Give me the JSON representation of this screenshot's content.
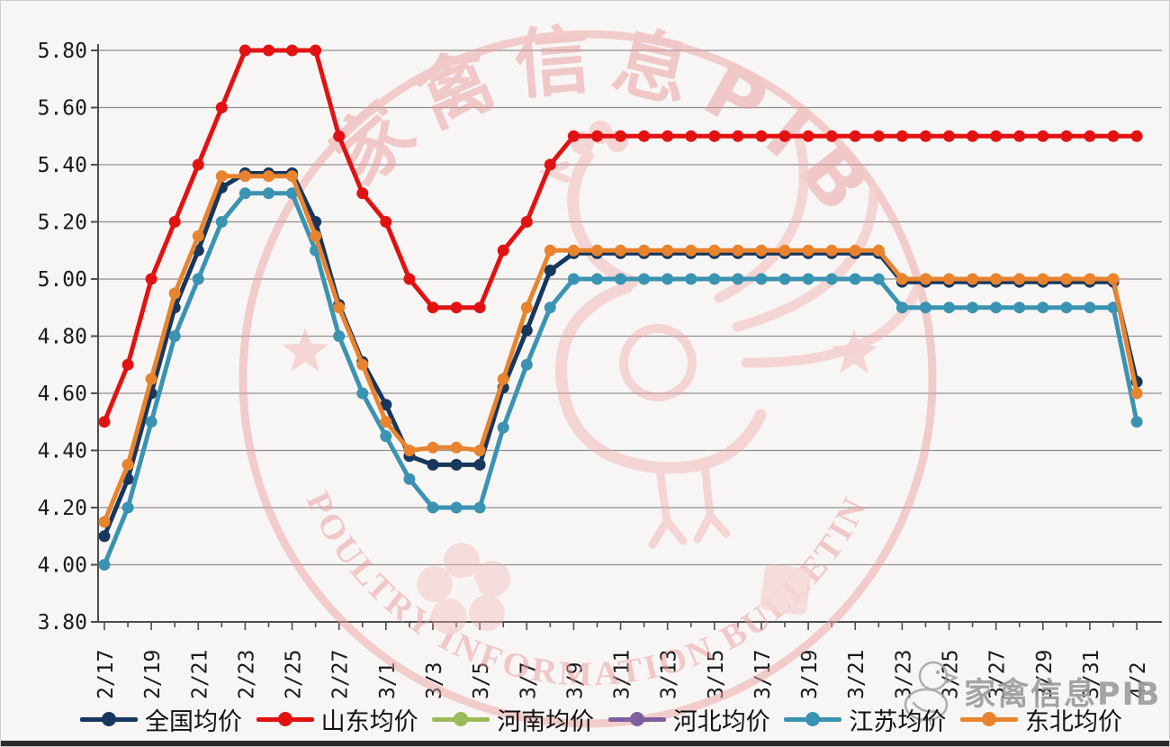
{
  "page": {
    "background": "#F8F6F4",
    "bottom_bar_color": "#2B2B2B"
  },
  "watermark": {
    "stamp_top_text": "家禽信息PIB",
    "stamp_bottom_text": "POULTRY INFORMATION BULLETIN",
    "stamp_color": "#EBA0A0",
    "logo_text": "家禽信息PIB",
    "logo_color": "#9C9C9C",
    "logo_icon": "chick-icon",
    "decor": [
      "circle-border",
      "rooster",
      "star-left",
      "star-right",
      "flower",
      "seal-square"
    ]
  },
  "chart_data": {
    "type": "line",
    "title": "",
    "xlabel": "",
    "ylabel": "",
    "grid": true,
    "legend_position": "bottom",
    "ylim": [
      3.8,
      5.8
    ],
    "y_tick_step": 0.2,
    "y_tick_labels": [
      "5.80",
      "5.60",
      "5.40",
      "5.20",
      "5.00",
      "4.80",
      "4.60",
      "4.40",
      "4.20",
      "4.00",
      "3.80"
    ],
    "x": [
      "2/17",
      "2/18",
      "2/19",
      "2/20",
      "2/21",
      "2/22",
      "2/23",
      "2/24",
      "2/25",
      "2/26",
      "2/27",
      "2/28",
      "3/1",
      "3/2",
      "3/3",
      "3/4",
      "3/5",
      "3/6",
      "3/7",
      "3/8",
      "3/9",
      "3/10",
      "3/11",
      "3/12",
      "3/13",
      "3/14",
      "3/15",
      "3/16",
      "3/17",
      "3/18",
      "3/19",
      "3/20",
      "3/21",
      "3/22",
      "3/23",
      "3/24",
      "3/25",
      "3/26",
      "3/27",
      "3/28",
      "3/29",
      "3/30",
      "3/31",
      "4/1",
      "4/2"
    ],
    "x_tick_labels_shown": [
      "2/17",
      "2/19",
      "2/21",
      "2/23",
      "2/25",
      "2/27",
      "3/1",
      "3/3",
      "3/5",
      "3/7",
      "3/9",
      "3/11",
      "3/13",
      "3/15",
      "3/17",
      "3/19",
      "3/21",
      "3/23",
      "3/25",
      "3/27",
      "3/29",
      "3/31",
      "4/2"
    ],
    "series": [
      {
        "name": "全国均价",
        "color": "#17375E",
        "values": [
          4.1,
          4.3,
          4.6,
          4.9,
          5.1,
          5.32,
          5.37,
          5.37,
          5.37,
          5.2,
          4.91,
          4.71,
          4.56,
          4.38,
          4.35,
          4.35,
          4.35,
          4.62,
          4.82,
          5.03,
          5.09,
          5.09,
          5.09,
          5.09,
          5.09,
          5.09,
          5.09,
          5.09,
          5.09,
          5.09,
          5.09,
          5.09,
          5.09,
          5.09,
          4.99,
          4.99,
          4.99,
          4.99,
          4.99,
          4.99,
          4.99,
          4.99,
          4.99,
          4.99,
          4.64
        ]
      },
      {
        "name": "山东均价",
        "color": "#E21212",
        "values": [
          4.5,
          4.7,
          5.0,
          5.2,
          5.4,
          5.6,
          5.8,
          5.8,
          5.8,
          5.8,
          5.5,
          5.3,
          5.2,
          5.0,
          4.9,
          4.9,
          4.9,
          5.1,
          5.2,
          5.4,
          5.5,
          5.5,
          5.5,
          5.5,
          5.5,
          5.5,
          5.5,
          5.5,
          5.5,
          5.5,
          5.5,
          5.5,
          5.5,
          5.5,
          5.5,
          5.5,
          5.5,
          5.5,
          5.5,
          5.5,
          5.5,
          5.5,
          5.5,
          5.5,
          5.5
        ]
      },
      {
        "name": "河南均价",
        "color": "#9BBB59",
        "values": null,
        "note": "line not visible in image (hidden behind other series)"
      },
      {
        "name": "河北均价",
        "color": "#7E60A0",
        "values": null,
        "note": "line not visible in image (hidden behind other series)"
      },
      {
        "name": "江苏均价",
        "color": "#3A93B2",
        "values": [
          4.0,
          4.2,
          4.5,
          4.8,
          5.0,
          5.2,
          5.3,
          5.3,
          5.3,
          5.1,
          4.8,
          4.6,
          4.45,
          4.3,
          4.2,
          4.2,
          4.2,
          4.48,
          4.7,
          4.9,
          5.0,
          5.0,
          5.0,
          5.0,
          5.0,
          5.0,
          5.0,
          5.0,
          5.0,
          5.0,
          5.0,
          5.0,
          5.0,
          5.0,
          4.9,
          4.9,
          4.9,
          4.9,
          4.9,
          4.9,
          4.9,
          4.9,
          4.9,
          4.9,
          4.5
        ]
      },
      {
        "name": "东北均价",
        "color": "#E8832E",
        "values": [
          4.15,
          4.35,
          4.65,
          4.95,
          5.15,
          5.36,
          5.36,
          5.36,
          5.36,
          5.15,
          4.9,
          4.7,
          4.5,
          4.4,
          4.41,
          4.41,
          4.4,
          4.65,
          4.9,
          5.1,
          5.1,
          5.1,
          5.1,
          5.1,
          5.1,
          5.1,
          5.1,
          5.1,
          5.1,
          5.1,
          5.1,
          5.1,
          5.1,
          5.1,
          5.0,
          5.0,
          5.0,
          5.0,
          5.0,
          5.0,
          5.0,
          5.0,
          5.0,
          5.0,
          4.6
        ]
      }
    ]
  }
}
